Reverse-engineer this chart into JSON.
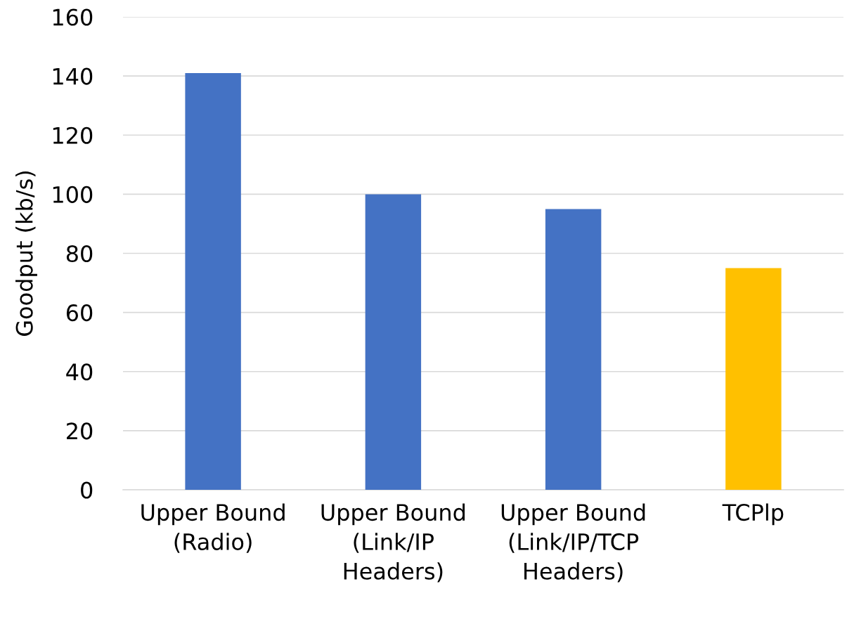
{
  "chart_data": {
    "type": "bar",
    "ylabel": "Goodput (kb/s)",
    "categories": [
      "Upper Bound\n(Radio)",
      "Upper Bound\n(Link/IP\nHeaders)",
      "Upper Bound\n(Link/IP/TCP\nHeaders)",
      "TCPlp"
    ],
    "values": [
      141,
      100,
      95,
      75
    ],
    "colors": [
      "#4472c4",
      "#4472c4",
      "#4472c4",
      "#ffc000"
    ],
    "ylim": [
      0,
      160
    ],
    "yticks": [
      0,
      20,
      40,
      60,
      80,
      100,
      120,
      140,
      160
    ],
    "grid": "y"
  }
}
